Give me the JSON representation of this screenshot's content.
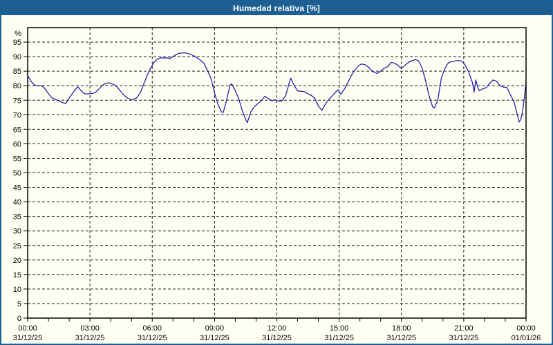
{
  "window": {
    "title": "Humedad relativa [%]"
  },
  "colors": {
    "titlebar": "#1d5f92",
    "frame_border": "#1d5f92",
    "background": "#fffff4",
    "series_line": "#2121aa",
    "gridline": "#1a1a1a",
    "text": "#000000",
    "title_text": "#ffffff"
  },
  "chart_data": {
    "type": "line",
    "title": "Humedad relativa [%]",
    "y_unit_label": "%",
    "xlabel": "",
    "ylabel": "%",
    "ylim": [
      0,
      100
    ],
    "y_tick_step": 5,
    "y_tick_max": 95,
    "xlim_hours": [
      0,
      24
    ],
    "x_minor_tick_every_hours": 1,
    "x_gridline_every_hours": 3,
    "grid": "dashed",
    "legend_position": "none",
    "x_ticks": [
      {
        "time": "00:00",
        "date": "31/12/25"
      },
      {
        "time": "03:00",
        "date": "31/12/25"
      },
      {
        "time": "06:00",
        "date": "31/12/25"
      },
      {
        "time": "09:00",
        "date": "31/12/25"
      },
      {
        "time": "12:00",
        "date": "31/12/25"
      },
      {
        "time": "15:00",
        "date": "31/12/25"
      },
      {
        "time": "18:00",
        "date": "31/12/25"
      },
      {
        "time": "21:00",
        "date": "31/12/25"
      },
      {
        "time": "00:00",
        "date": "01/01/26"
      }
    ],
    "series": [
      {
        "name": "Humedad relativa",
        "color": "#2121aa",
        "x_hours": [
          0,
          0.17,
          0.33,
          0.5,
          0.67,
          0.83,
          1,
          1.17,
          1.33,
          1.5,
          1.67,
          1.83,
          2,
          2.17,
          2.33,
          2.42,
          2.58,
          2.75,
          2.92,
          3.08,
          3.25,
          3.42,
          3.58,
          3.75,
          3.92,
          4.08,
          4.25,
          4.42,
          4.58,
          4.75,
          4.92,
          5.08,
          5.25,
          5.42,
          5.58,
          5.75,
          5.92,
          6.08,
          6.25,
          6.42,
          6.58,
          6.75,
          6.83,
          7,
          7.17,
          7.33,
          7.5,
          7.67,
          7.83,
          8,
          8.17,
          8.33,
          8.5,
          8.67,
          8.83,
          9,
          9.17,
          9.33,
          9.42,
          9.58,
          9.75,
          9.83,
          10,
          10.17,
          10.33,
          10.5,
          10.58,
          10.75,
          10.92,
          11.08,
          11.25,
          11.42,
          11.58,
          11.75,
          11.92,
          12.08,
          12.25,
          12.42,
          12.58,
          12.67,
          12.83,
          13,
          13.17,
          13.33,
          13.5,
          13.67,
          13.83,
          14,
          14.17,
          14.33,
          14.5,
          14.67,
          14.83,
          14.95,
          15.08,
          15.25,
          15.42,
          15.58,
          15.75,
          15.92,
          16.08,
          16.25,
          16.42,
          16.58,
          16.75,
          16.83,
          17,
          17.17,
          17.33,
          17.5,
          17.67,
          17.83,
          18,
          18.17,
          18.33,
          18.5,
          18.67,
          18.83,
          19,
          19.17,
          19.33,
          19.5,
          19.58,
          19.75,
          19.92,
          20.08,
          20.25,
          20.42,
          20.58,
          20.75,
          20.92,
          21.08,
          21.25,
          21.42,
          21.5,
          21.58,
          21.67,
          21.75,
          21.92,
          22.08,
          22.25,
          22.42,
          22.58,
          22.75,
          22.92,
          23.08,
          23.25,
          23.42,
          23.58,
          23.67,
          23.75,
          23.83,
          23.92,
          24
        ],
        "values": [
          83.5,
          81.5,
          80.2,
          80,
          80,
          79,
          77.3,
          75.8,
          75.3,
          74.8,
          74.2,
          73.8,
          75.8,
          77.5,
          79,
          79.6,
          78.2,
          77.2,
          77.2,
          77.3,
          77.6,
          78.8,
          80,
          80.8,
          81,
          80.6,
          80,
          78.6,
          77.2,
          76,
          75.3,
          75.3,
          75.8,
          77.5,
          80.3,
          83.5,
          86,
          88,
          89.2,
          89.6,
          89.5,
          89.6,
          89.3,
          90,
          90.8,
          91.2,
          91.3,
          91.2,
          90.8,
          90.3,
          89.5,
          88.8,
          87.6,
          85,
          82.5,
          77.5,
          73.5,
          71,
          70.8,
          75,
          80.3,
          80.6,
          78.3,
          75.5,
          71.5,
          68.5,
          67.3,
          71,
          72.8,
          73.8,
          74.8,
          76.4,
          75.6,
          74.8,
          75.2,
          74.6,
          74.8,
          76.5,
          80.5,
          82.6,
          80.2,
          78.2,
          78.1,
          77.9,
          77.2,
          76.6,
          75.6,
          73,
          71.5,
          73.6,
          75.2,
          76.5,
          77.8,
          78.6,
          77,
          78.8,
          81,
          83.4,
          85.3,
          86.8,
          87.5,
          87.2,
          86.4,
          85,
          84.5,
          84.2,
          85,
          86,
          86.5,
          88,
          87.8,
          87,
          85.9,
          87,
          88,
          88.6,
          89,
          88.5,
          86,
          81.5,
          76.5,
          72.8,
          72.3,
          75,
          82.5,
          85.8,
          87.8,
          88.3,
          88.5,
          88.7,
          88.4,
          87,
          84.5,
          81,
          77.8,
          82,
          79.5,
          78.3,
          78.9,
          79.3,
          80.8,
          82,
          81.5,
          80,
          79.5,
          79.4,
          76.8,
          74.5,
          70,
          67.5,
          68.5,
          71,
          76,
          81.3
        ]
      }
    ]
  }
}
